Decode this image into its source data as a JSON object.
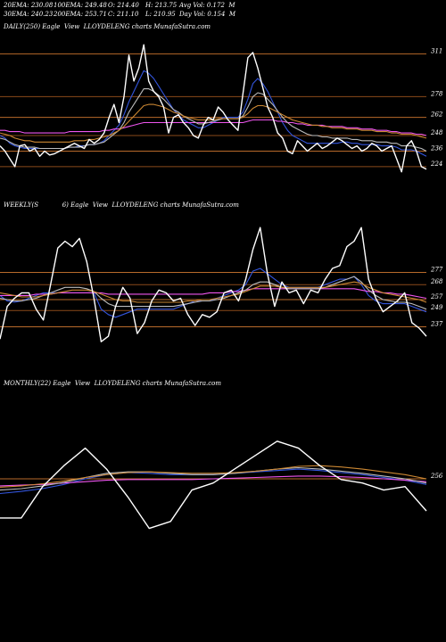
{
  "header": {
    "row1": [
      "20EMA: 230.08",
      "100EMA: 249.48",
      "O: 214.40",
      "H: 213.75",
      "Avg Vol: 0.172  M"
    ],
    "row2": [
      "30EMA: 240.23",
      "200EMA: 253.71",
      "C: 211.10",
      "L: 210.95",
      "Day Vol: 0.154  M"
    ]
  },
  "chart_data": [
    {
      "type": "line",
      "title": "DAILY(250) Eagle  View  LLOYDELENG charts MunafaSutra.com",
      "ylim": [
        215,
        325
      ],
      "price_levels": [
        311,
        278,
        262,
        248,
        236,
        224
      ],
      "series": [
        {
          "color": "#ffffff",
          "values": [
            240,
            236,
            230,
            224,
            240,
            241,
            236,
            238,
            232,
            236,
            233,
            234,
            236,
            238,
            240,
            242,
            240,
            238,
            245,
            242,
            245,
            250,
            262,
            272,
            258,
            278,
            310,
            290,
            300,
            318,
            290,
            282,
            278,
            270,
            250,
            262,
            264,
            258,
            254,
            248,
            246,
            256,
            262,
            260,
            270,
            266,
            260,
            256,
            252,
            280,
            308,
            312,
            300,
            285,
            270,
            262,
            250,
            246,
            236,
            234,
            244,
            240,
            236,
            239,
            242,
            238,
            240,
            243,
            246,
            244,
            241,
            238,
            240,
            236,
            238,
            242,
            240,
            236,
            238,
            240,
            230,
            220,
            240,
            244,
            236,
            224,
            222
          ]
        },
        {
          "color": "#3355dd",
          "values": [
            248,
            246,
            242,
            240,
            239,
            238,
            238,
            238,
            238,
            238,
            238,
            238,
            238,
            238,
            239,
            239,
            240,
            240,
            241,
            241,
            242,
            244,
            248,
            252,
            256,
            264,
            274,
            282,
            290,
            298,
            296,
            292,
            286,
            280,
            274,
            268,
            264,
            260,
            258,
            256,
            254,
            254,
            256,
            258,
            260,
            262,
            262,
            262,
            262,
            266,
            276,
            288,
            292,
            288,
            282,
            274,
            266,
            258,
            252,
            248,
            246,
            244,
            242,
            242,
            242,
            242,
            242,
            242,
            242,
            243,
            243,
            242,
            242,
            241,
            241,
            241,
            241,
            240,
            240,
            240,
            239,
            237,
            237,
            237,
            236,
            234,
            232
          ]
        },
        {
          "color": "#ee55ee",
          "values": [
            252,
            252,
            251,
            251,
            251,
            250,
            250,
            250,
            250,
            250,
            250,
            250,
            250,
            250,
            251,
            251,
            251,
            251,
            251,
            251,
            251,
            252,
            252,
            253,
            253,
            254,
            255,
            256,
            257,
            258,
            258,
            258,
            258,
            258,
            258,
            258,
            258,
            258,
            258,
            258,
            258,
            258,
            258,
            258,
            258,
            258,
            258,
            258,
            258,
            258,
            259,
            260,
            260,
            260,
            260,
            260,
            259,
            259,
            258,
            258,
            257,
            257,
            256,
            256,
            256,
            256,
            255,
            255,
            255,
            255,
            254,
            254,
            254,
            253,
            253,
            253,
            252,
            252,
            252,
            251,
            251,
            250,
            250,
            250,
            249,
            249,
            248
          ]
        },
        {
          "color": "#bbbbbb",
          "values": [
            246,
            245,
            243,
            241,
            240,
            239,
            239,
            239,
            238,
            238,
            238,
            238,
            238,
            238,
            239,
            239,
            239,
            240,
            241,
            241,
            242,
            243,
            246,
            249,
            252,
            258,
            266,
            272,
            278,
            284,
            284,
            282,
            279,
            276,
            272,
            268,
            266,
            263,
            261,
            259,
            257,
            257,
            258,
            259,
            260,
            261,
            261,
            261,
            261,
            263,
            270,
            278,
            281,
            280,
            276,
            272,
            267,
            262,
            258,
            255,
            253,
            251,
            249,
            248,
            248,
            247,
            247,
            246,
            246,
            246,
            246,
            245,
            245,
            244,
            244,
            244,
            243,
            243,
            243,
            242,
            242,
            240,
            240,
            240,
            239,
            238,
            236
          ]
        },
        {
          "color": "#cc8833",
          "values": [
            250,
            249,
            248,
            246,
            245,
            244,
            244,
            243,
            243,
            243,
            243,
            243,
            243,
            243,
            243,
            244,
            244,
            244,
            245,
            245,
            246,
            247,
            248,
            250,
            252,
            255,
            259,
            263,
            267,
            271,
            272,
            272,
            271,
            270,
            268,
            266,
            265,
            263,
            262,
            261,
            260,
            260,
            260,
            260,
            261,
            261,
            261,
            261,
            261,
            262,
            265,
            269,
            271,
            271,
            270,
            268,
            266,
            264,
            262,
            260,
            259,
            258,
            257,
            256,
            256,
            255,
            255,
            254,
            254,
            254,
            253,
            253,
            253,
            252,
            252,
            252,
            251,
            251,
            251,
            250,
            250,
            249,
            249,
            249,
            248,
            247,
            246
          ]
        }
      ]
    },
    {
      "type": "line",
      "title": "WEEKLY(S            6) Eagle  View  LLOYDELENG charts MunafaSutra.com",
      "ylim": [
        215,
        320
      ],
      "price_levels": [
        277,
        268,
        257,
        249,
        237
      ],
      "series": [
        {
          "color": "#ffffff",
          "values": [
            228,
            252,
            258,
            262,
            262,
            250,
            242,
            268,
            295,
            300,
            296,
            302,
            285,
            258,
            226,
            230,
            252,
            266,
            258,
            232,
            240,
            256,
            264,
            262,
            256,
            258,
            246,
            238,
            246,
            244,
            248,
            262,
            264,
            256,
            272,
            294,
            310,
            276,
            252,
            270,
            262,
            264,
            254,
            264,
            262,
            272,
            280,
            282,
            296,
            300,
            310,
            272,
            258,
            248,
            252,
            256,
            262,
            240,
            236,
            230
          ]
        },
        {
          "color": "#3355dd",
          "values": [
            260,
            256,
            255,
            256,
            258,
            260,
            262,
            262,
            262,
            262,
            262,
            262,
            262,
            262,
            250,
            246,
            244,
            246,
            248,
            250,
            250,
            250,
            250,
            250,
            250,
            252,
            254,
            256,
            256,
            256,
            258,
            260,
            262,
            264,
            268,
            278,
            280,
            276,
            272,
            268,
            266,
            266,
            266,
            266,
            266,
            268,
            270,
            272,
            272,
            274,
            268,
            260,
            256,
            254,
            254,
            254,
            254,
            252,
            250,
            248
          ]
        },
        {
          "color": "#ee55ee",
          "values": [
            260,
            260,
            260,
            260,
            260,
            261,
            261,
            261,
            262,
            262,
            262,
            262,
            262,
            262,
            262,
            261,
            261,
            261,
            261,
            261,
            261,
            261,
            261,
            261,
            261,
            261,
            261,
            261,
            261,
            262,
            262,
            262,
            263,
            263,
            264,
            265,
            265,
            265,
            265,
            265,
            265,
            265,
            265,
            265,
            265,
            265,
            265,
            265,
            265,
            265,
            264,
            263,
            263,
            262,
            262,
            261,
            261,
            260,
            259,
            258
          ]
        },
        {
          "color": "#bbbbbb",
          "values": [
            258,
            257,
            256,
            256,
            257,
            258,
            260,
            262,
            264,
            266,
            266,
            266,
            265,
            263,
            258,
            254,
            252,
            252,
            252,
            252,
            252,
            252,
            252,
            252,
            252,
            253,
            254,
            255,
            256,
            256,
            257,
            258,
            260,
            262,
            264,
            268,
            270,
            270,
            268,
            266,
            265,
            265,
            265,
            265,
            265,
            266,
            268,
            270,
            272,
            274,
            270,
            264,
            260,
            257,
            256,
            255,
            255,
            254,
            252,
            250
          ]
        },
        {
          "color": "#cc8833",
          "values": [
            262,
            261,
            260,
            259,
            259,
            259,
            260,
            261,
            262,
            263,
            264,
            264,
            264,
            263,
            261,
            259,
            257,
            256,
            256,
            255,
            255,
            255,
            255,
            255,
            255,
            255,
            256,
            256,
            257,
            257,
            258,
            259,
            260,
            261,
            263,
            265,
            267,
            267,
            267,
            266,
            266,
            266,
            266,
            266,
            266,
            266,
            267,
            268,
            269,
            270,
            269,
            266,
            264,
            262,
            261,
            260,
            259,
            258,
            257,
            255
          ]
        }
      ]
    },
    {
      "type": "line",
      "title": "MONTHLY(22) Eagle  View  LLOYDELENG charts MunafaSutra.com",
      "ylim": [
        150,
        380
      ],
      "price_levels": [
        256
      ],
      "series": [
        {
          "color": "#ffffff",
          "values": [
            200,
            200,
            245,
            275,
            300,
            270,
            230,
            185,
            195,
            240,
            250,
            270,
            290,
            310,
            300,
            275,
            255,
            250,
            240,
            245,
            210
          ]
        },
        {
          "color": "#3355dd",
          "values": [
            235,
            238,
            242,
            248,
            256,
            262,
            265,
            264,
            262,
            262,
            262,
            264,
            266,
            268,
            270,
            268,
            265,
            262,
            258,
            254,
            248
          ]
        },
        {
          "color": "#ee55ee",
          "values": [
            246,
            247,
            248,
            250,
            252,
            254,
            255,
            255,
            255,
            255,
            256,
            257,
            258,
            259,
            260,
            260,
            259,
            258,
            256,
            254,
            252
          ]
        },
        {
          "color": "#bbbbbb",
          "values": [
            240,
            242,
            246,
            251,
            258,
            264,
            266,
            266,
            264,
            262,
            262,
            264,
            267,
            270,
            272,
            270,
            267,
            264,
            260,
            256,
            250
          ]
        },
        {
          "color": "#cc8833",
          "values": [
            244,
            246,
            249,
            253,
            258,
            262,
            265,
            266,
            265,
            264,
            264,
            265,
            267,
            270,
            274,
            275,
            273,
            270,
            266,
            262,
            256
          ]
        }
      ]
    }
  ]
}
